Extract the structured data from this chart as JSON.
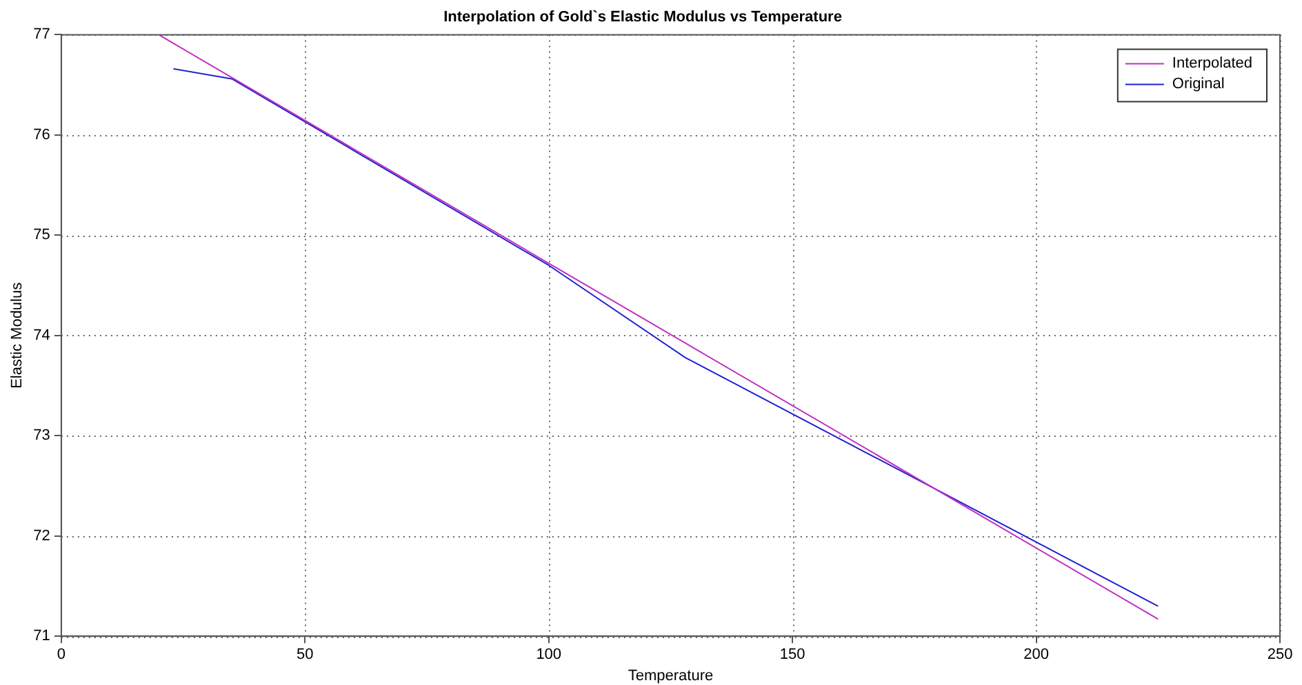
{
  "chart_data": {
    "type": "line",
    "title": "Interpolation of Gold`s Elastic Modulus vs Temperature",
    "xlabel": "Temperature",
    "ylabel": "Elastic Modulus",
    "xlim": [
      0,
      250
    ],
    "xticks": [
      0,
      50,
      100,
      150,
      200,
      250
    ],
    "ylim": [
      71,
      77
    ],
    "yticks": [
      71,
      72,
      73,
      74,
      75,
      76,
      77
    ],
    "grid": true,
    "legend": "top right",
    "marker": "none",
    "line_style": "solid",
    "series": [
      {
        "name": "Interpolated",
        "color": "#c030c0",
        "x": [
          20,
          100,
          225
        ],
        "values": [
          77,
          74.72,
          71.17
        ]
      },
      {
        "name": "Original",
        "color": "#2020d0",
        "x": [
          23,
          35,
          100,
          128,
          225
        ],
        "values": [
          76.66,
          76.56,
          74.7,
          73.78,
          71.3
        ]
      }
    ]
  }
}
